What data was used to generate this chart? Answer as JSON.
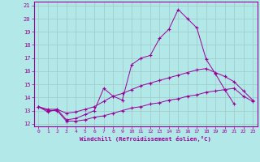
{
  "xlabel": "Windchill (Refroidissement éolien,°C)",
  "bg_color": "#b3e8e8",
  "grid_color": "#a0c8c8",
  "line_color": "#990099",
  "xlim": [
    -0.5,
    23.5
  ],
  "ylim": [
    11.8,
    21.3
  ],
  "yticks": [
    12,
    13,
    14,
    15,
    16,
    17,
    18,
    19,
    20,
    21
  ],
  "xticks": [
    0,
    1,
    2,
    3,
    4,
    5,
    6,
    7,
    8,
    9,
    10,
    11,
    12,
    13,
    14,
    15,
    16,
    17,
    18,
    19,
    20,
    21,
    22,
    23
  ],
  "line1_x": [
    0,
    1,
    2,
    3,
    4,
    5,
    6,
    7,
    8,
    9,
    10,
    11,
    12,
    13,
    14,
    15,
    16,
    17,
    18,
    19,
    20,
    21
  ],
  "line1_y": [
    13.3,
    12.9,
    13.1,
    12.3,
    12.4,
    12.7,
    13.0,
    14.7,
    14.1,
    13.8,
    16.5,
    17.0,
    17.2,
    18.5,
    19.2,
    20.7,
    20.0,
    19.3,
    16.9,
    15.8,
    14.6,
    13.5
  ],
  "line2_x": [
    0,
    1,
    2,
    3,
    4,
    5,
    6,
    7,
    8,
    9,
    10,
    11,
    12,
    13,
    14,
    15,
    16,
    17,
    18,
    19,
    20,
    21,
    22,
    23
  ],
  "line2_y": [
    13.3,
    13.1,
    13.1,
    12.8,
    12.9,
    13.1,
    13.3,
    13.7,
    14.1,
    14.3,
    14.6,
    14.9,
    15.1,
    15.3,
    15.5,
    15.7,
    15.9,
    16.1,
    16.2,
    15.9,
    15.6,
    15.2,
    14.5,
    13.8
  ],
  "line3_x": [
    0,
    1,
    2,
    3,
    4,
    5,
    6,
    7,
    8,
    9,
    10,
    11,
    12,
    13,
    14,
    15,
    16,
    17,
    18,
    19,
    20,
    21,
    22,
    23
  ],
  "line3_y": [
    13.3,
    13.0,
    13.0,
    12.2,
    12.2,
    12.3,
    12.5,
    12.6,
    12.8,
    13.0,
    13.2,
    13.3,
    13.5,
    13.6,
    13.8,
    13.9,
    14.1,
    14.2,
    14.4,
    14.5,
    14.6,
    14.7,
    14.1,
    13.7
  ]
}
